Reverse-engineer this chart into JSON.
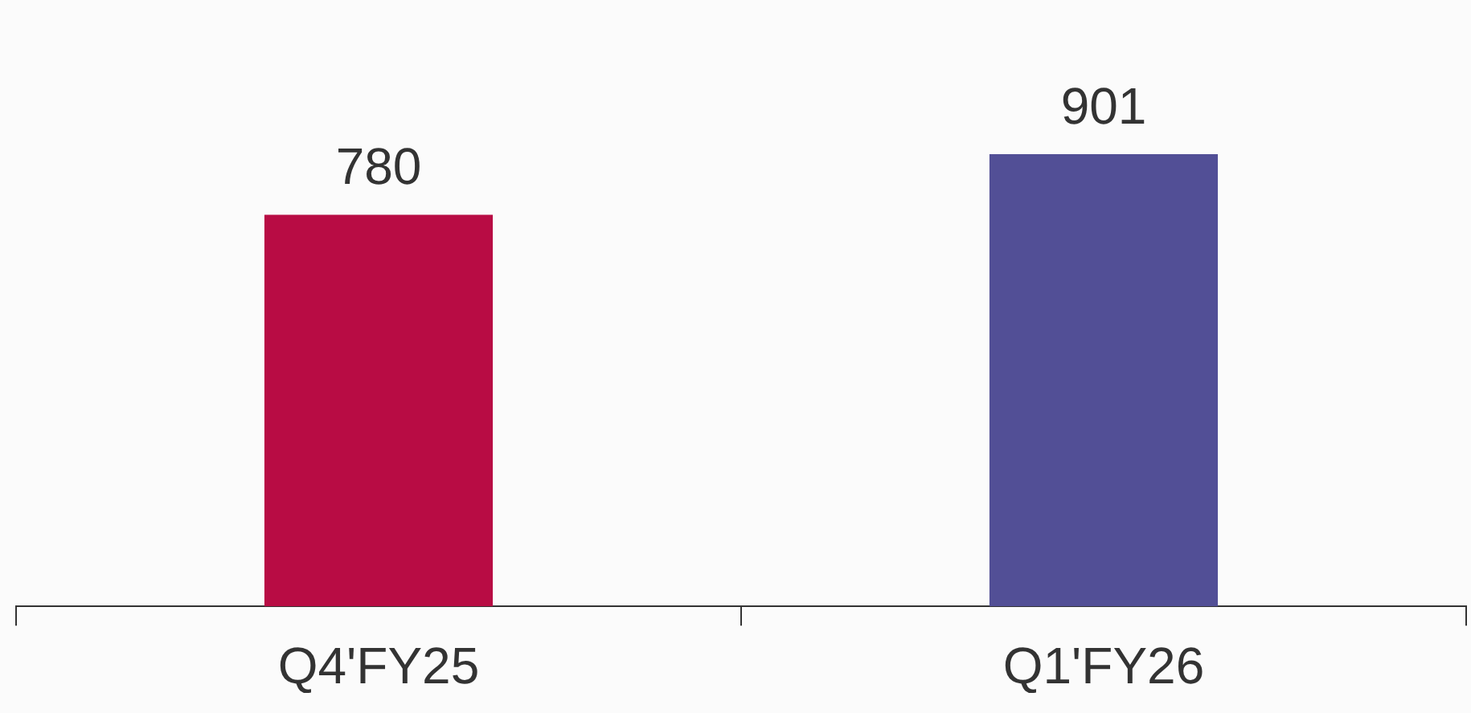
{
  "chart_data": {
    "type": "bar",
    "categories": [
      "Q4'FY25",
      "Q1'FY26"
    ],
    "values": [
      780,
      901
    ],
    "colors": [
      "#b80c44",
      "#524f96"
    ],
    "data_labels": true,
    "legend": false,
    "grid": false
  }
}
